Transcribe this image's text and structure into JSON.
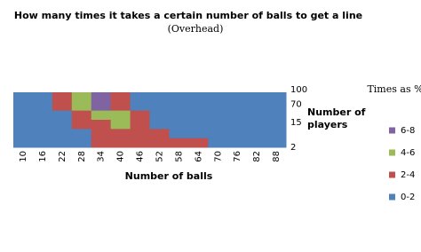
{
  "chart_data": {
    "type": "surface",
    "title": "How many times it takes a certain number of balls  to get a line",
    "subtitle": "(Overhead)",
    "x_label": "Number of balls",
    "y_label": "Number of players",
    "legend_title": "Times as %",
    "categories": [
      "10",
      "16",
      "22",
      "28",
      "34",
      "40",
      "46",
      "52",
      "58",
      "64",
      "70",
      "76",
      "82",
      "88"
    ],
    "rows": [
      "100",
      "70",
      null,
      "15",
      null,
      "2"
    ],
    "z": [
      [
        0.5,
        1,
        3,
        5,
        7,
        3,
        1,
        0.5,
        0.3,
        0.2,
        0.1,
        0.1,
        0.1,
        0.1
      ],
      [
        0.5,
        0.8,
        2.5,
        4.5,
        6.5,
        4,
        1.5,
        0.7,
        0.3,
        0.2,
        0.1,
        0.1,
        0.1,
        0.1
      ],
      [
        0.3,
        0.6,
        2,
        3.5,
        5,
        5,
        2.5,
        1,
        0.5,
        0.3,
        0.1,
        0.1,
        0.1,
        0.1
      ],
      [
        0.2,
        0.4,
        1.5,
        2.5,
        3.5,
        4.5,
        3.5,
        1.8,
        0.8,
        0.4,
        0.2,
        0.1,
        0.1,
        0.1
      ],
      [
        0.1,
        0.3,
        1,
        2,
        3,
        3.5,
        3.5,
        2.8,
        1.5,
        0.7,
        0.3,
        0.2,
        0.1,
        0.1
      ],
      [
        0.1,
        0.2,
        0.5,
        1.5,
        2.5,
        3,
        3.2,
        3,
        2.6,
        2.2,
        1.5,
        0.6,
        0.2,
        0.1
      ]
    ],
    "levels": [
      0,
      2,
      4,
      6,
      8
    ],
    "bands": [
      {
        "label": "0-2",
        "color": "#4f81bd"
      },
      {
        "label": "2-4",
        "color": "#c0504d"
      },
      {
        "label": "4-6",
        "color": "#9bbb59"
      },
      {
        "label": "6-8",
        "color": "#8064a2"
      }
    ]
  }
}
